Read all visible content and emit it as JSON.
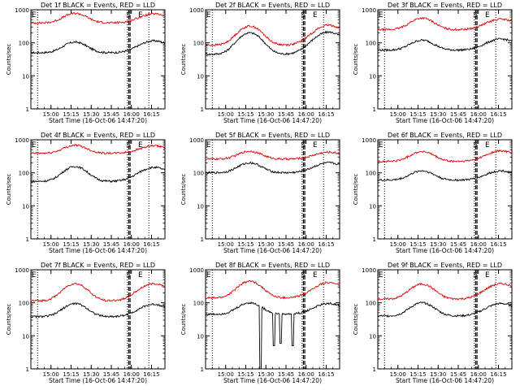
{
  "colors": {
    "events": "#000000",
    "lld": "#e00000",
    "axis": "#000000"
  },
  "common": {
    "ylabel": "Counts/sec",
    "xlabel": "Start Time (16-Oct-06 14:47:20)",
    "yticks": [
      1,
      10,
      100,
      1000
    ],
    "ytick_labels": [
      "1",
      "10",
      "100",
      "1000"
    ],
    "xticks_min": [
      15,
      30,
      45,
      60,
      75,
      90
    ],
    "xtick_labels": [
      "15:00",
      "15:15",
      "15:30",
      "15:45",
      "16:00",
      "16:15"
    ],
    "flag_letters": [
      "E",
      "S",
      "E"
    ]
  },
  "chart_data": [
    {
      "type": "line",
      "title": "Det 1f BLACK = Events, RED = LLD",
      "xlabel": "Start Time (16-Oct-06 14:47:20)",
      "ylabel": "Counts/sec",
      "ylim": [
        1,
        1000
      ],
      "log_y": true,
      "series": [
        {
          "name": "Events",
          "color": "#000000",
          "base": 50,
          "peak1": 105,
          "peak2": 115,
          "dips": []
        },
        {
          "name": "LLD",
          "color": "#e00000",
          "base": 400,
          "peak1": 780,
          "peak2": 750,
          "dips": []
        }
      ]
    },
    {
      "type": "line",
      "title": "Det 2f BLACK = Events, RED = LLD",
      "xlabel": "Start Time (16-Oct-06 14:47:20)",
      "ylabel": "Counts/sec",
      "ylim": [
        1,
        1000
      ],
      "log_y": true,
      "series": [
        {
          "name": "Events",
          "color": "#000000",
          "base": 45,
          "peak1": 200,
          "peak2": 210,
          "dips": []
        },
        {
          "name": "LLD",
          "color": "#e00000",
          "base": 85,
          "peak1": 320,
          "peak2": 340,
          "dips": []
        }
      ]
    },
    {
      "type": "line",
      "title": "Det 3f BLACK = Events, RED = LLD",
      "xlabel": "Start Time (16-Oct-06 14:47:20)",
      "ylabel": "Counts/sec",
      "ylim": [
        1,
        1000
      ],
      "log_y": true,
      "series": [
        {
          "name": "Events",
          "color": "#000000",
          "base": 60,
          "peak1": 120,
          "peak2": 130,
          "dips": []
        },
        {
          "name": "LLD",
          "color": "#e00000",
          "base": 250,
          "peak1": 560,
          "peak2": 520,
          "dips": []
        }
      ]
    },
    {
      "type": "line",
      "title": "Det 4f BLACK = Events, RED = LLD",
      "xlabel": "Start Time (16-Oct-06 14:47:20)",
      "ylabel": "Counts/sec",
      "ylim": [
        1,
        1000
      ],
      "log_y": true,
      "series": [
        {
          "name": "Events",
          "color": "#000000",
          "base": 55,
          "peak1": 155,
          "peak2": 145,
          "dips": []
        },
        {
          "name": "LLD",
          "color": "#e00000",
          "base": 390,
          "peak1": 680,
          "peak2": 650,
          "dips": []
        }
      ]
    },
    {
      "type": "line",
      "title": "Det 5f BLACK = Events, RED = LLD",
      "xlabel": "Start Time (16-Oct-06 14:47:20)",
      "ylabel": "Counts/sec",
      "ylim": [
        1,
        1000
      ],
      "log_y": true,
      "series": [
        {
          "name": "Events",
          "color": "#000000",
          "base": 100,
          "peak1": 200,
          "peak2": 200,
          "dips": []
        },
        {
          "name": "LLD",
          "color": "#e00000",
          "base": 260,
          "peak1": 450,
          "peak2": 420,
          "dips": []
        }
      ]
    },
    {
      "type": "line",
      "title": "Det 6f BLACK = Events, RED = LLD",
      "xlabel": "Start Time (16-Oct-06 14:47:20)",
      "ylabel": "Counts/sec",
      "ylim": [
        1,
        1000
      ],
      "log_y": true,
      "series": [
        {
          "name": "Events",
          "color": "#000000",
          "base": 60,
          "peak1": 115,
          "peak2": 115,
          "dips": []
        },
        {
          "name": "LLD",
          "color": "#e00000",
          "base": 220,
          "peak1": 440,
          "peak2": 460,
          "dips": []
        }
      ]
    },
    {
      "type": "line",
      "title": "Det 7f BLACK = Events, RED = LLD",
      "xlabel": "Start Time (16-Oct-06 14:47:20)",
      "ylabel": "Counts/sec",
      "ylim": [
        1,
        1000
      ],
      "log_y": true,
      "series": [
        {
          "name": "Events",
          "color": "#000000",
          "base": 38,
          "peak1": 95,
          "peak2": 90,
          "dips": []
        },
        {
          "name": "LLD",
          "color": "#e00000",
          "base": 115,
          "peak1": 380,
          "peak2": 380,
          "dips": []
        }
      ]
    },
    {
      "type": "line",
      "title": "Det 8f BLACK = Events, RED = LLD",
      "xlabel": "Start Time (16-Oct-06 14:47:20)",
      "ylabel": "Counts/sec",
      "ylim": [
        1,
        1000
      ],
      "log_y": true,
      "series": [
        {
          "name": "Events",
          "color": "#000000",
          "base": 45,
          "peak1": 100,
          "peak2": 95,
          "dips": [
            [
              41,
              1
            ],
            [
              51,
              5
            ],
            [
              56,
              6
            ],
            [
              65,
              5
            ]
          ]
        },
        {
          "name": "LLD",
          "color": "#e00000",
          "base": 140,
          "peak1": 450,
          "peak2": 410,
          "dips": []
        }
      ]
    },
    {
      "type": "line",
      "title": "Det 9f BLACK = Events, RED = LLD",
      "xlabel": "Start Time (16-Oct-06 14:47:20)",
      "ylabel": "Counts/sec",
      "ylim": [
        1,
        1000
      ],
      "log_y": true,
      "series": [
        {
          "name": "Events",
          "color": "#000000",
          "base": 40,
          "peak1": 100,
          "peak2": 95,
          "dips": []
        },
        {
          "name": "LLD",
          "color": "#e00000",
          "base": 130,
          "peak1": 370,
          "peak2": 380,
          "dips": []
        }
      ]
    }
  ],
  "markers": {
    "dotted_min": [
      5,
      72,
      88
    ],
    "dashed_min": [
      73,
      74
    ]
  }
}
